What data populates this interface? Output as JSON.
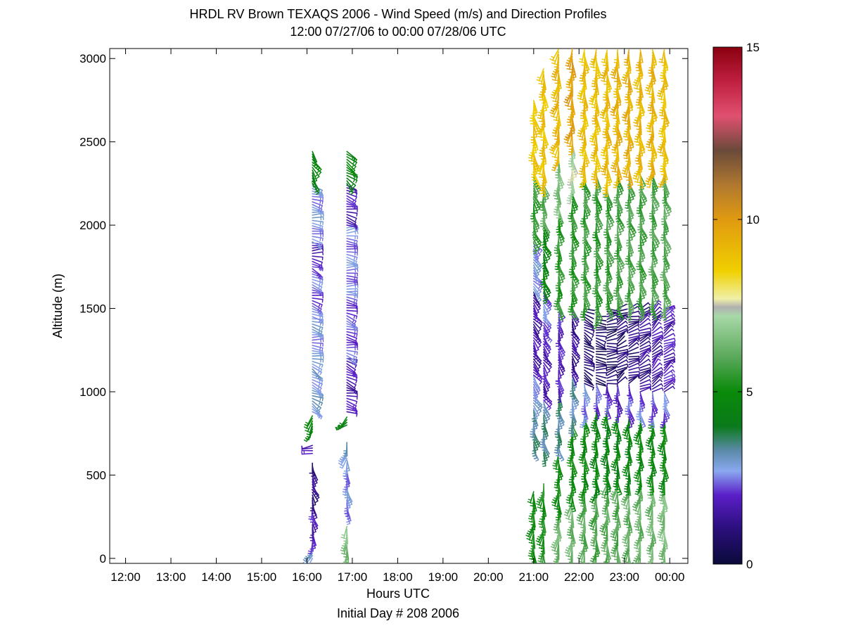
{
  "chart_data": {
    "type": "wind-barb-profile",
    "title": "HRDL RV Brown TEXAQS 2006 - Wind Speed (m/s) and Direction Profiles",
    "subtitle": "12:00 07/27/06 to 00:00 07/28/06  UTC",
    "xlabel": "Hours UTC",
    "xlabel2": "Initial Day # 208  2006",
    "ylabel": "Altitude (m)",
    "x_range_hours": [
      11.65,
      24.4
    ],
    "ylim": [
      -30,
      3060
    ],
    "x_ticks": [
      {
        "h": 12,
        "label": "12:00"
      },
      {
        "h": 13,
        "label": "13:00"
      },
      {
        "h": 14,
        "label": "14:00"
      },
      {
        "h": 15,
        "label": "15:00"
      },
      {
        "h": 16,
        "label": "16:00"
      },
      {
        "h": 17,
        "label": "17:00"
      },
      {
        "h": 18,
        "label": "18:00"
      },
      {
        "h": 19,
        "label": "19:00"
      },
      {
        "h": 20,
        "label": "20:00"
      },
      {
        "h": 21,
        "label": "21:00"
      },
      {
        "h": 22,
        "label": "22:00"
      },
      {
        "h": 23,
        "label": "23:00"
      },
      {
        "h": 24,
        "label": "00:00"
      }
    ],
    "y_ticks": [
      0,
      500,
      1000,
      1500,
      2000,
      2500,
      3000
    ],
    "colorbar": {
      "range": [
        0,
        15
      ],
      "ticks": [
        0,
        5,
        10,
        15
      ],
      "stops": [
        {
          "v": 0,
          "c": "#0a0a3a"
        },
        {
          "v": 1,
          "c": "#2a0f7a"
        },
        {
          "v": 2,
          "c": "#5a1ec8"
        },
        {
          "v": 2.7,
          "c": "#8aa8f0"
        },
        {
          "v": 3.3,
          "c": "#5a8aa8"
        },
        {
          "v": 4,
          "c": "#0a7a1a"
        },
        {
          "v": 5,
          "c": "#0a8a0a"
        },
        {
          "v": 6,
          "c": "#5aa85a"
        },
        {
          "v": 7.2,
          "c": "#a8d8a8"
        },
        {
          "v": 7.45,
          "c": "#b0b0b0"
        },
        {
          "v": 7.7,
          "c": "#f0f0a8"
        },
        {
          "v": 8.5,
          "c": "#f0d000"
        },
        {
          "v": 10,
          "c": "#e09a10"
        },
        {
          "v": 11,
          "c": "#b07830"
        },
        {
          "v": 12,
          "c": "#6a4a3a"
        },
        {
          "v": 13,
          "c": "#e05070"
        },
        {
          "v": 14,
          "c": "#c02040"
        },
        {
          "v": 15,
          "c": "#8a0010"
        }
      ]
    },
    "profiles": [
      {
        "t": 16.12,
        "segments": [
          {
            "z0": 0,
            "z1": 90,
            "speed": 2.8,
            "dir": 200
          },
          {
            "z0": 90,
            "z1": 300,
            "speed": 1.8,
            "dir": 170
          },
          {
            "z0": 300,
            "z1": 580,
            "speed": 1.2,
            "dir": 160
          },
          {
            "z0": 630,
            "z1": 690,
            "speed": 2.0,
            "dir": 250
          },
          {
            "z0": 760,
            "z1": 860,
            "speed": 4.8,
            "dir": 200
          },
          {
            "z0": 880,
            "z1": 1150,
            "speed": 2.9,
            "dir": 120
          },
          {
            "z0": 1150,
            "z1": 1450,
            "speed": 2.7,
            "dir": 100
          },
          {
            "z0": 1450,
            "z1": 1750,
            "speed": 2.3,
            "dir": 110
          },
          {
            "z0": 1750,
            "z1": 1900,
            "speed": 1.9,
            "dir": 95
          },
          {
            "z0": 1900,
            "z1": 2250,
            "speed": 2.7,
            "dir": 100
          },
          {
            "z0": 2250,
            "z1": 2450,
            "speed": 4.6,
            "dir": 150
          }
        ]
      },
      {
        "t": 16.88,
        "segments": [
          {
            "z0": 0,
            "z1": 200,
            "speed": 6.5,
            "dir": 190
          },
          {
            "z0": 270,
            "z1": 600,
            "speed": 2.6,
            "dir": 170
          },
          {
            "z0": 600,
            "z1": 700,
            "speed": 3.0,
            "dir": 200
          },
          {
            "z0": 800,
            "z1": 860,
            "speed": 4.5,
            "dir": 230
          },
          {
            "z0": 880,
            "z1": 1200,
            "speed": 1.7,
            "dir": 110
          },
          {
            "z0": 1200,
            "z1": 1600,
            "speed": 2.2,
            "dir": 105
          },
          {
            "z0": 1600,
            "z1": 2000,
            "speed": 2.5,
            "dir": 95
          },
          {
            "z0": 2000,
            "z1": 2250,
            "speed": 1.8,
            "dir": 110
          },
          {
            "z0": 2250,
            "z1": 2450,
            "speed": 4.6,
            "dir": 130
          }
        ]
      },
      {
        "t": 21.0,
        "segments": [
          {
            "z0": 0,
            "z1": 400,
            "speed": 5.0,
            "dir": 185
          },
          {
            "z0": 650,
            "z1": 900,
            "speed": 3.4,
            "dir": 165
          },
          {
            "z0": 900,
            "z1": 1100,
            "speed": 2.8,
            "dir": 150
          },
          {
            "z0": 1100,
            "z1": 1600,
            "speed": 1.6,
            "dir": 145
          },
          {
            "z0": 1600,
            "z1": 1900,
            "speed": 2.7,
            "dir": 140
          },
          {
            "z0": 1900,
            "z1": 2300,
            "speed": 5.5,
            "dir": 160
          },
          {
            "z0": 2300,
            "z1": 2750,
            "speed": 8.8,
            "dir": 170
          }
        ]
      },
      {
        "t": 21.22,
        "segments": [
          {
            "z0": 0,
            "z1": 450,
            "speed": 5.2,
            "dir": 185
          },
          {
            "z0": 620,
            "z1": 950,
            "speed": 3.4,
            "dir": 165
          },
          {
            "z0": 950,
            "z1": 1350,
            "speed": 1.8,
            "dir": 150
          },
          {
            "z0": 1350,
            "z1": 1600,
            "speed": 2.4,
            "dir": 145
          },
          {
            "z0": 1600,
            "z1": 2000,
            "speed": 4.6,
            "dir": 160
          },
          {
            "z0": 2000,
            "z1": 2250,
            "speed": 6.0,
            "dir": 170
          },
          {
            "z0": 2250,
            "z1": 2950,
            "speed": 8.9,
            "dir": 180
          }
        ]
      },
      {
        "t": 21.55,
        "segments": [
          {
            "z0": 0,
            "z1": 300,
            "speed": 6.3,
            "dir": 185
          },
          {
            "z0": 300,
            "z1": 650,
            "speed": 5.0,
            "dir": 180
          },
          {
            "z0": 650,
            "z1": 1000,
            "speed": 3.4,
            "dir": 170
          },
          {
            "z0": 1000,
            "z1": 1500,
            "speed": 1.9,
            "dir": 160
          },
          {
            "z0": 1500,
            "z1": 2100,
            "speed": 5.4,
            "dir": 170
          },
          {
            "z0": 2100,
            "z1": 2400,
            "speed": 6.5,
            "dir": 175
          },
          {
            "z0": 2400,
            "z1": 3060,
            "speed": 9.2,
            "dir": 190
          }
        ]
      },
      {
        "t": 21.85,
        "segments": [
          {
            "z0": 0,
            "z1": 350,
            "speed": 6.2,
            "dir": 185
          },
          {
            "z0": 350,
            "z1": 800,
            "speed": 5.0,
            "dir": 175
          },
          {
            "z0": 800,
            "z1": 1100,
            "speed": 3.2,
            "dir": 165
          },
          {
            "z0": 1100,
            "z1": 1500,
            "speed": 1.4,
            "dir": 150
          },
          {
            "z0": 1500,
            "z1": 2200,
            "speed": 5.4,
            "dir": 165
          },
          {
            "z0": 2200,
            "z1": 2500,
            "speed": 7.3,
            "dir": 175
          },
          {
            "z0": 2500,
            "z1": 3060,
            "speed": 9.8,
            "dir": 185
          }
        ]
      },
      {
        "t": 22.12,
        "segments": [
          {
            "z0": 0,
            "z1": 400,
            "speed": 6.0,
            "dir": 185
          },
          {
            "z0": 400,
            "z1": 850,
            "speed": 4.9,
            "dir": 175
          },
          {
            "z0": 850,
            "z1": 1050,
            "speed": 2.6,
            "dir": 170
          },
          {
            "z0": 1050,
            "z1": 1500,
            "speed": 0.8,
            "dir": 120
          },
          {
            "z0": 1500,
            "z1": 2300,
            "speed": 5.6,
            "dir": 165
          },
          {
            "z0": 2300,
            "z1": 3060,
            "speed": 9.0,
            "dir": 180
          }
        ]
      },
      {
        "t": 22.38,
        "segments": [
          {
            "z0": 0,
            "z1": 400,
            "speed": 5.8,
            "dir": 185
          },
          {
            "z0": 400,
            "z1": 900,
            "speed": 4.7,
            "dir": 180
          },
          {
            "z0": 900,
            "z1": 1050,
            "speed": 2.2,
            "dir": 170
          },
          {
            "z0": 1050,
            "z1": 1450,
            "speed": 0.6,
            "dir": 100
          },
          {
            "z0": 1450,
            "z1": 2300,
            "speed": 5.5,
            "dir": 165
          },
          {
            "z0": 2300,
            "z1": 3060,
            "speed": 9.0,
            "dir": 180
          }
        ]
      },
      {
        "t": 22.62,
        "segments": [
          {
            "z0": 0,
            "z1": 450,
            "speed": 6.0,
            "dir": 185
          },
          {
            "z0": 450,
            "z1": 900,
            "speed": 4.5,
            "dir": 180
          },
          {
            "z0": 900,
            "z1": 1050,
            "speed": 2.0,
            "dir": 170
          },
          {
            "z0": 1050,
            "z1": 1500,
            "speed": 0.7,
            "dir": 80
          },
          {
            "z0": 1500,
            "z1": 2250,
            "speed": 5.6,
            "dir": 165
          },
          {
            "z0": 2250,
            "z1": 3060,
            "speed": 9.1,
            "dir": 180
          }
        ]
      },
      {
        "t": 22.85,
        "segments": [
          {
            "z0": 0,
            "z1": 450,
            "speed": 5.9,
            "dir": 185
          },
          {
            "z0": 450,
            "z1": 880,
            "speed": 4.6,
            "dir": 180
          },
          {
            "z0": 880,
            "z1": 1050,
            "speed": 1.9,
            "dir": 170
          },
          {
            "z0": 1050,
            "z1": 1500,
            "speed": 0.9,
            "dir": 60
          },
          {
            "z0": 1500,
            "z1": 2300,
            "speed": 5.7,
            "dir": 165
          },
          {
            "z0": 2300,
            "z1": 3060,
            "speed": 9.3,
            "dir": 180
          }
        ]
      },
      {
        "t": 23.1,
        "segments": [
          {
            "z0": 0,
            "z1": 450,
            "speed": 6.1,
            "dir": 185
          },
          {
            "z0": 450,
            "z1": 850,
            "speed": 4.6,
            "dir": 180
          },
          {
            "z0": 850,
            "z1": 1050,
            "speed": 2.2,
            "dir": 165
          },
          {
            "z0": 1050,
            "z1": 1500,
            "speed": 1.1,
            "dir": 70
          },
          {
            "z0": 1500,
            "z1": 2300,
            "speed": 5.8,
            "dir": 165
          },
          {
            "z0": 2300,
            "z1": 3060,
            "speed": 9.4,
            "dir": 180
          }
        ]
      },
      {
        "t": 23.35,
        "segments": [
          {
            "z0": 0,
            "z1": 450,
            "speed": 6.2,
            "dir": 185
          },
          {
            "z0": 450,
            "z1": 850,
            "speed": 4.8,
            "dir": 180
          },
          {
            "z0": 850,
            "z1": 1000,
            "speed": 2.4,
            "dir": 165
          },
          {
            "z0": 1000,
            "z1": 1500,
            "speed": 1.3,
            "dir": 60
          },
          {
            "z0": 1500,
            "z1": 2300,
            "speed": 5.7,
            "dir": 165
          },
          {
            "z0": 2300,
            "z1": 3060,
            "speed": 9.2,
            "dir": 180
          }
        ]
      },
      {
        "t": 23.62,
        "segments": [
          {
            "z0": 0,
            "z1": 450,
            "speed": 6.3,
            "dir": 185
          },
          {
            "z0": 450,
            "z1": 850,
            "speed": 4.8,
            "dir": 180
          },
          {
            "z0": 850,
            "z1": 1000,
            "speed": 2.3,
            "dir": 165
          },
          {
            "z0": 1000,
            "z1": 1500,
            "speed": 1.6,
            "dir": 50
          },
          {
            "z0": 1500,
            "z1": 2300,
            "speed": 5.8,
            "dir": 165
          },
          {
            "z0": 2300,
            "z1": 3060,
            "speed": 9.3,
            "dir": 180
          }
        ]
      },
      {
        "t": 23.88,
        "segments": [
          {
            "z0": 0,
            "z1": 450,
            "speed": 6.5,
            "dir": 185
          },
          {
            "z0": 450,
            "z1": 850,
            "speed": 4.9,
            "dir": 180
          },
          {
            "z0": 850,
            "z1": 1000,
            "speed": 2.4,
            "dir": 165
          },
          {
            "z0": 1000,
            "z1": 1500,
            "speed": 1.8,
            "dir": 60
          },
          {
            "z0": 1500,
            "z1": 2300,
            "speed": 5.9,
            "dir": 165
          },
          {
            "z0": 2300,
            "z1": 3060,
            "speed": 9.0,
            "dir": 180
          }
        ]
      }
    ]
  }
}
